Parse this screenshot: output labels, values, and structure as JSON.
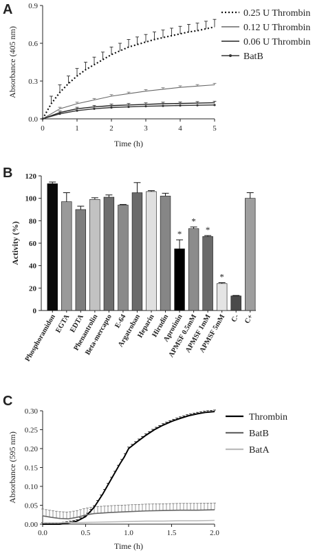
{
  "chart_data": [
    {
      "panel": "A",
      "type": "line",
      "xlabel": "Time (h)",
      "ylabel": "Absorbance (405 nm)",
      "xlim": [
        0,
        5
      ],
      "ylim": [
        0,
        0.9
      ],
      "xticks": [
        "0",
        "1",
        "2",
        "3",
        "4",
        "5"
      ],
      "yticks": [
        "0.0",
        "0.3",
        "0.6",
        "0.9"
      ],
      "legend_position": "top-right",
      "series": [
        {
          "name": "0.25 U Thrombin",
          "style": "dotted",
          "color": "#111111",
          "x": [
            0,
            0.25,
            0.5,
            0.75,
            1,
            1.25,
            1.5,
            1.75,
            2,
            2.25,
            2.5,
            2.75,
            3,
            3.25,
            3.5,
            3.75,
            4,
            4.25,
            4.5,
            4.75,
            5
          ],
          "y": [
            0,
            0.12,
            0.21,
            0.28,
            0.34,
            0.39,
            0.43,
            0.47,
            0.51,
            0.54,
            0.57,
            0.59,
            0.61,
            0.63,
            0.645,
            0.66,
            0.675,
            0.69,
            0.7,
            0.715,
            0.73
          ]
        },
        {
          "name": "0.12 U Thrombin",
          "style": "solid-thin",
          "color": "#666666",
          "x": [
            0,
            0.5,
            1,
            1.5,
            2,
            2.5,
            3,
            3.5,
            4,
            4.5,
            5
          ],
          "y": [
            0,
            0.08,
            0.12,
            0.15,
            0.18,
            0.2,
            0.22,
            0.235,
            0.25,
            0.26,
            0.27
          ]
        },
        {
          "name": "0.06 U Thrombin",
          "style": "solid",
          "color": "#222222",
          "x": [
            0,
            0.5,
            1,
            1.5,
            2,
            2.5,
            3,
            3.5,
            4,
            4.5,
            5
          ],
          "y": [
            0,
            0.05,
            0.08,
            0.095,
            0.105,
            0.11,
            0.115,
            0.12,
            0.122,
            0.125,
            0.128
          ]
        },
        {
          "name": "BatB",
          "style": "line-with-markers",
          "color": "#333333",
          "x": [
            0,
            0.5,
            1,
            1.5,
            2,
            2.5,
            3,
            3.5,
            4,
            4.5,
            5
          ],
          "y": [
            0,
            0.04,
            0.065,
            0.08,
            0.09,
            0.095,
            0.1,
            0.103,
            0.106,
            0.108,
            0.11
          ]
        }
      ]
    },
    {
      "panel": "B",
      "type": "bar",
      "ylabel": "Activity (%)",
      "ylim": [
        0,
        120
      ],
      "yticks": [
        "0",
        "20",
        "40",
        "60",
        "80",
        "100",
        "120"
      ],
      "categories": [
        "Phosphoramidon",
        "EGTA",
        "EDTA",
        "Phenantrolin",
        "Beta-mercapto",
        "E-64",
        "Argatroban",
        "Heparin",
        "Hirudin",
        "Aprotinin",
        "APMSF 0.5mM",
        "APMSF 1mM",
        "APMSF 5mM",
        "C-",
        "C+"
      ],
      "values": [
        113,
        97,
        90,
        99,
        101,
        94,
        105,
        106,
        102,
        55,
        73,
        66,
        24,
        13,
        100
      ],
      "errors": [
        1.5,
        8,
        3,
        1.5,
        2,
        0.5,
        9,
        0.8,
        2.5,
        8,
        1.5,
        0.8,
        0.8,
        0.4,
        5
      ],
      "colors": [
        "#0a0a0a",
        "#9a9a9a",
        "#7e7e7e",
        "#c2c2c2",
        "#6e6e6e",
        "#8a8a8a",
        "#6a6a6a",
        "#e0e0e0",
        "#868686",
        "#000000",
        "#8c8c8c",
        "#6a6a6a",
        "#e4e4e4",
        "#4a4a4a",
        "#9e9e9e"
      ],
      "significance_marker": "*",
      "significant": [
        false,
        false,
        false,
        false,
        false,
        false,
        false,
        false,
        false,
        true,
        true,
        true,
        true,
        false,
        false
      ]
    },
    {
      "panel": "C",
      "type": "line",
      "xlabel": "Time (h)",
      "ylabel": "Absorbance (595 nm)",
      "xlim": [
        0,
        2
      ],
      "ylim": [
        0,
        0.3
      ],
      "xticks": [
        "0.0",
        "0.5",
        "1.0",
        "1.5",
        "2.0"
      ],
      "yticks": [
        "0.00",
        "0.05",
        "0.10",
        "0.15",
        "0.20",
        "0.25",
        "0.30"
      ],
      "legend_position": "top-right",
      "series": [
        {
          "name": "Thrombin",
          "color": "#000000",
          "x": [
            0,
            0.1,
            0.2,
            0.3,
            0.4,
            0.5,
            0.6,
            0.7,
            0.8,
            0.9,
            0.95,
            1.0,
            1.1,
            1.2,
            1.3,
            1.4,
            1.5,
            1.6,
            1.7,
            1.8,
            1.9,
            2.0
          ],
          "y": [
            0,
            0,
            0,
            0.003,
            0.008,
            0.02,
            0.045,
            0.08,
            0.12,
            0.16,
            0.178,
            0.2,
            0.218,
            0.235,
            0.25,
            0.262,
            0.272,
            0.28,
            0.287,
            0.292,
            0.296,
            0.298
          ]
        },
        {
          "name": "BatB",
          "color": "#666666",
          "x": [
            0,
            0.1,
            0.2,
            0.3,
            0.4,
            0.5,
            0.6,
            0.8,
            1.0,
            1.2,
            1.4,
            1.6,
            1.8,
            2.0
          ],
          "y": [
            0.022,
            0.018,
            0.015,
            0.014,
            0.018,
            0.024,
            0.028,
            0.031,
            0.033,
            0.035,
            0.036,
            0.037,
            0.037,
            0.038
          ]
        },
        {
          "name": "BatA",
          "color": "#bbbbbb",
          "x": [
            0,
            0.2,
            0.4,
            0.6,
            0.8,
            1.0,
            1.2,
            1.4,
            1.6,
            1.8,
            2.0
          ],
          "y": [
            0.004,
            0.004,
            0.004,
            0.005,
            0.006,
            0.007,
            0.008,
            0.008,
            0.009,
            0.009,
            0.01
          ]
        }
      ]
    }
  ],
  "panels": {
    "a_letter": "A",
    "b_letter": "B",
    "c_letter": "C"
  }
}
